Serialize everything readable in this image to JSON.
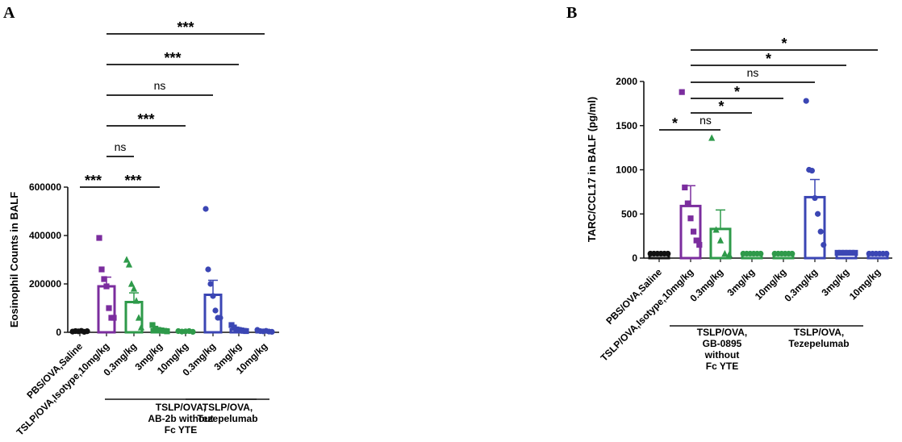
{
  "colors": {
    "black": "#111111",
    "purple": "#7b2d9e",
    "green": "#2e9a4a",
    "blue": "#3b46b4"
  },
  "chart_data": [
    {
      "panel": "A",
      "type": "bar",
      "title": "",
      "ylabel": "Eosinophil Counts in BALF",
      "ylim": [
        0,
        600000
      ],
      "yticks": [
        0,
        200000,
        400000,
        600000
      ],
      "ytick_labels": [
        "0",
        "200000",
        "400000",
        "600000"
      ],
      "categories": [
        "PBS/OVA,Saline",
        "TSLP/OVA,Isotype,10mg/kg",
        "0.3mg/kg",
        "3mg/kg",
        "10mg/kg",
        "0.3mg/kg",
        "3mg/kg",
        "10mg/kg"
      ],
      "colors": [
        "black",
        "purple",
        "green",
        "green",
        "green",
        "blue",
        "blue",
        "blue"
      ],
      "markers": [
        "circle",
        "square",
        "triangle",
        "square",
        "circle",
        "circle",
        "square",
        "circle"
      ],
      "values": [
        4000,
        190000,
        125000,
        12000,
        4000,
        155000,
        12000,
        5000
      ],
      "errors": [
        1500,
        38000,
        38000,
        4000,
        1500,
        60000,
        4000,
        2000
      ],
      "points": [
        [
          3000,
          5000,
          4000,
          6000,
          2000,
          4500
        ],
        [
          390000,
          260000,
          220000,
          190000,
          100000,
          60000,
          60000
        ],
        [
          300000,
          280000,
          200000,
          180000,
          130000,
          60000,
          20000
        ],
        [
          30000,
          15000,
          10000,
          8000,
          6000,
          4000
        ],
        [
          5000,
          3000,
          4000,
          5000,
          2000
        ],
        [
          510000,
          260000,
          200000,
          150000,
          90000,
          60000,
          60000
        ],
        [
          30000,
          20000,
          12000,
          10000,
          8000,
          6000,
          5000
        ],
        [
          10000,
          5000,
          4000,
          6000,
          3000,
          2000
        ]
      ],
      "groups": [
        {
          "label": [
            "TSLP/OVA,",
            "AB-2b without",
            "Fc YTE"
          ],
          "from": 1,
          "to": 4
        },
        {
          "label": [
            "TSLP/OVA,",
            "Tezepelumab"
          ],
          "from": 5,
          "to": 7
        }
      ],
      "significance": [
        {
          "from": 0,
          "to": 1,
          "text": "***"
        },
        {
          "from": 1,
          "to": 3,
          "text": "***"
        },
        {
          "from": 1,
          "to": 2,
          "text": "ns"
        },
        {
          "from": 1,
          "to": 4,
          "text": "***"
        },
        {
          "from": 1,
          "to": 5,
          "text": "ns"
        },
        {
          "from": 1,
          "to": 6,
          "text": "***"
        },
        {
          "from": 1,
          "to": 7,
          "text": "***"
        }
      ]
    },
    {
      "panel": "B",
      "type": "bar",
      "title": "",
      "ylabel": "TARC/CCL17 in BALF (pg/ml)",
      "ylim": [
        0,
        2000
      ],
      "yticks": [
        0,
        500,
        1000,
        1500,
        2000
      ],
      "ytick_labels": [
        "0",
        "500",
        "1000",
        "1500",
        "2000"
      ],
      "categories": [
        "PBS/OVA,Saline",
        "TSLP/OVA,Isotype,10mg/kg",
        "0.3mg/kg",
        "3mg/kg",
        "10mg/kg",
        "0.3mg/kg",
        "3mg/kg",
        "10mg/kg"
      ],
      "colors": [
        "black",
        "purple",
        "green",
        "green",
        "green",
        "blue",
        "blue",
        "blue"
      ],
      "markers": [
        "circle",
        "square",
        "triangle",
        "circle",
        "circle",
        "circle",
        "square",
        "circle"
      ],
      "values": [
        50,
        590,
        330,
        50,
        50,
        690,
        60,
        50
      ],
      "errors": [
        4,
        230,
        215,
        4,
        4,
        200,
        5,
        4
      ],
      "points": [
        [
          50,
          50,
          50,
          50,
          50,
          50
        ],
        [
          1880,
          800,
          620,
          450,
          300,
          200,
          150
        ],
        [
          1360,
          320,
          200,
          50,
          40
        ],
        [
          50,
          50,
          50,
          50,
          50,
          50
        ],
        [
          50,
          50,
          50,
          50,
          50,
          50
        ],
        [
          1780,
          1000,
          990,
          680,
          500,
          300,
          150
        ],
        [
          60,
          60,
          60,
          60,
          60,
          60
        ],
        [
          50,
          50,
          50,
          50,
          50,
          50
        ]
      ],
      "groups": [
        {
          "label": [
            "TSLP/OVA,",
            "GB-0895",
            "without",
            "Fc YTE"
          ],
          "from": 2,
          "to": 4
        },
        {
          "label": [
            "TSLP/OVA,",
            "Tezepelumab"
          ],
          "from": 5,
          "to": 7
        }
      ],
      "significance": [
        {
          "from": 0,
          "to": 1,
          "text": "*"
        },
        {
          "from": 1,
          "to": 2,
          "text": "ns"
        },
        {
          "from": 1,
          "to": 3,
          "text": "*"
        },
        {
          "from": 1,
          "to": 4,
          "text": "*"
        },
        {
          "from": 1,
          "to": 5,
          "text": "ns"
        },
        {
          "from": 1,
          "to": 6,
          "text": "*"
        },
        {
          "from": 1,
          "to": 7,
          "text": "*"
        }
      ]
    }
  ]
}
